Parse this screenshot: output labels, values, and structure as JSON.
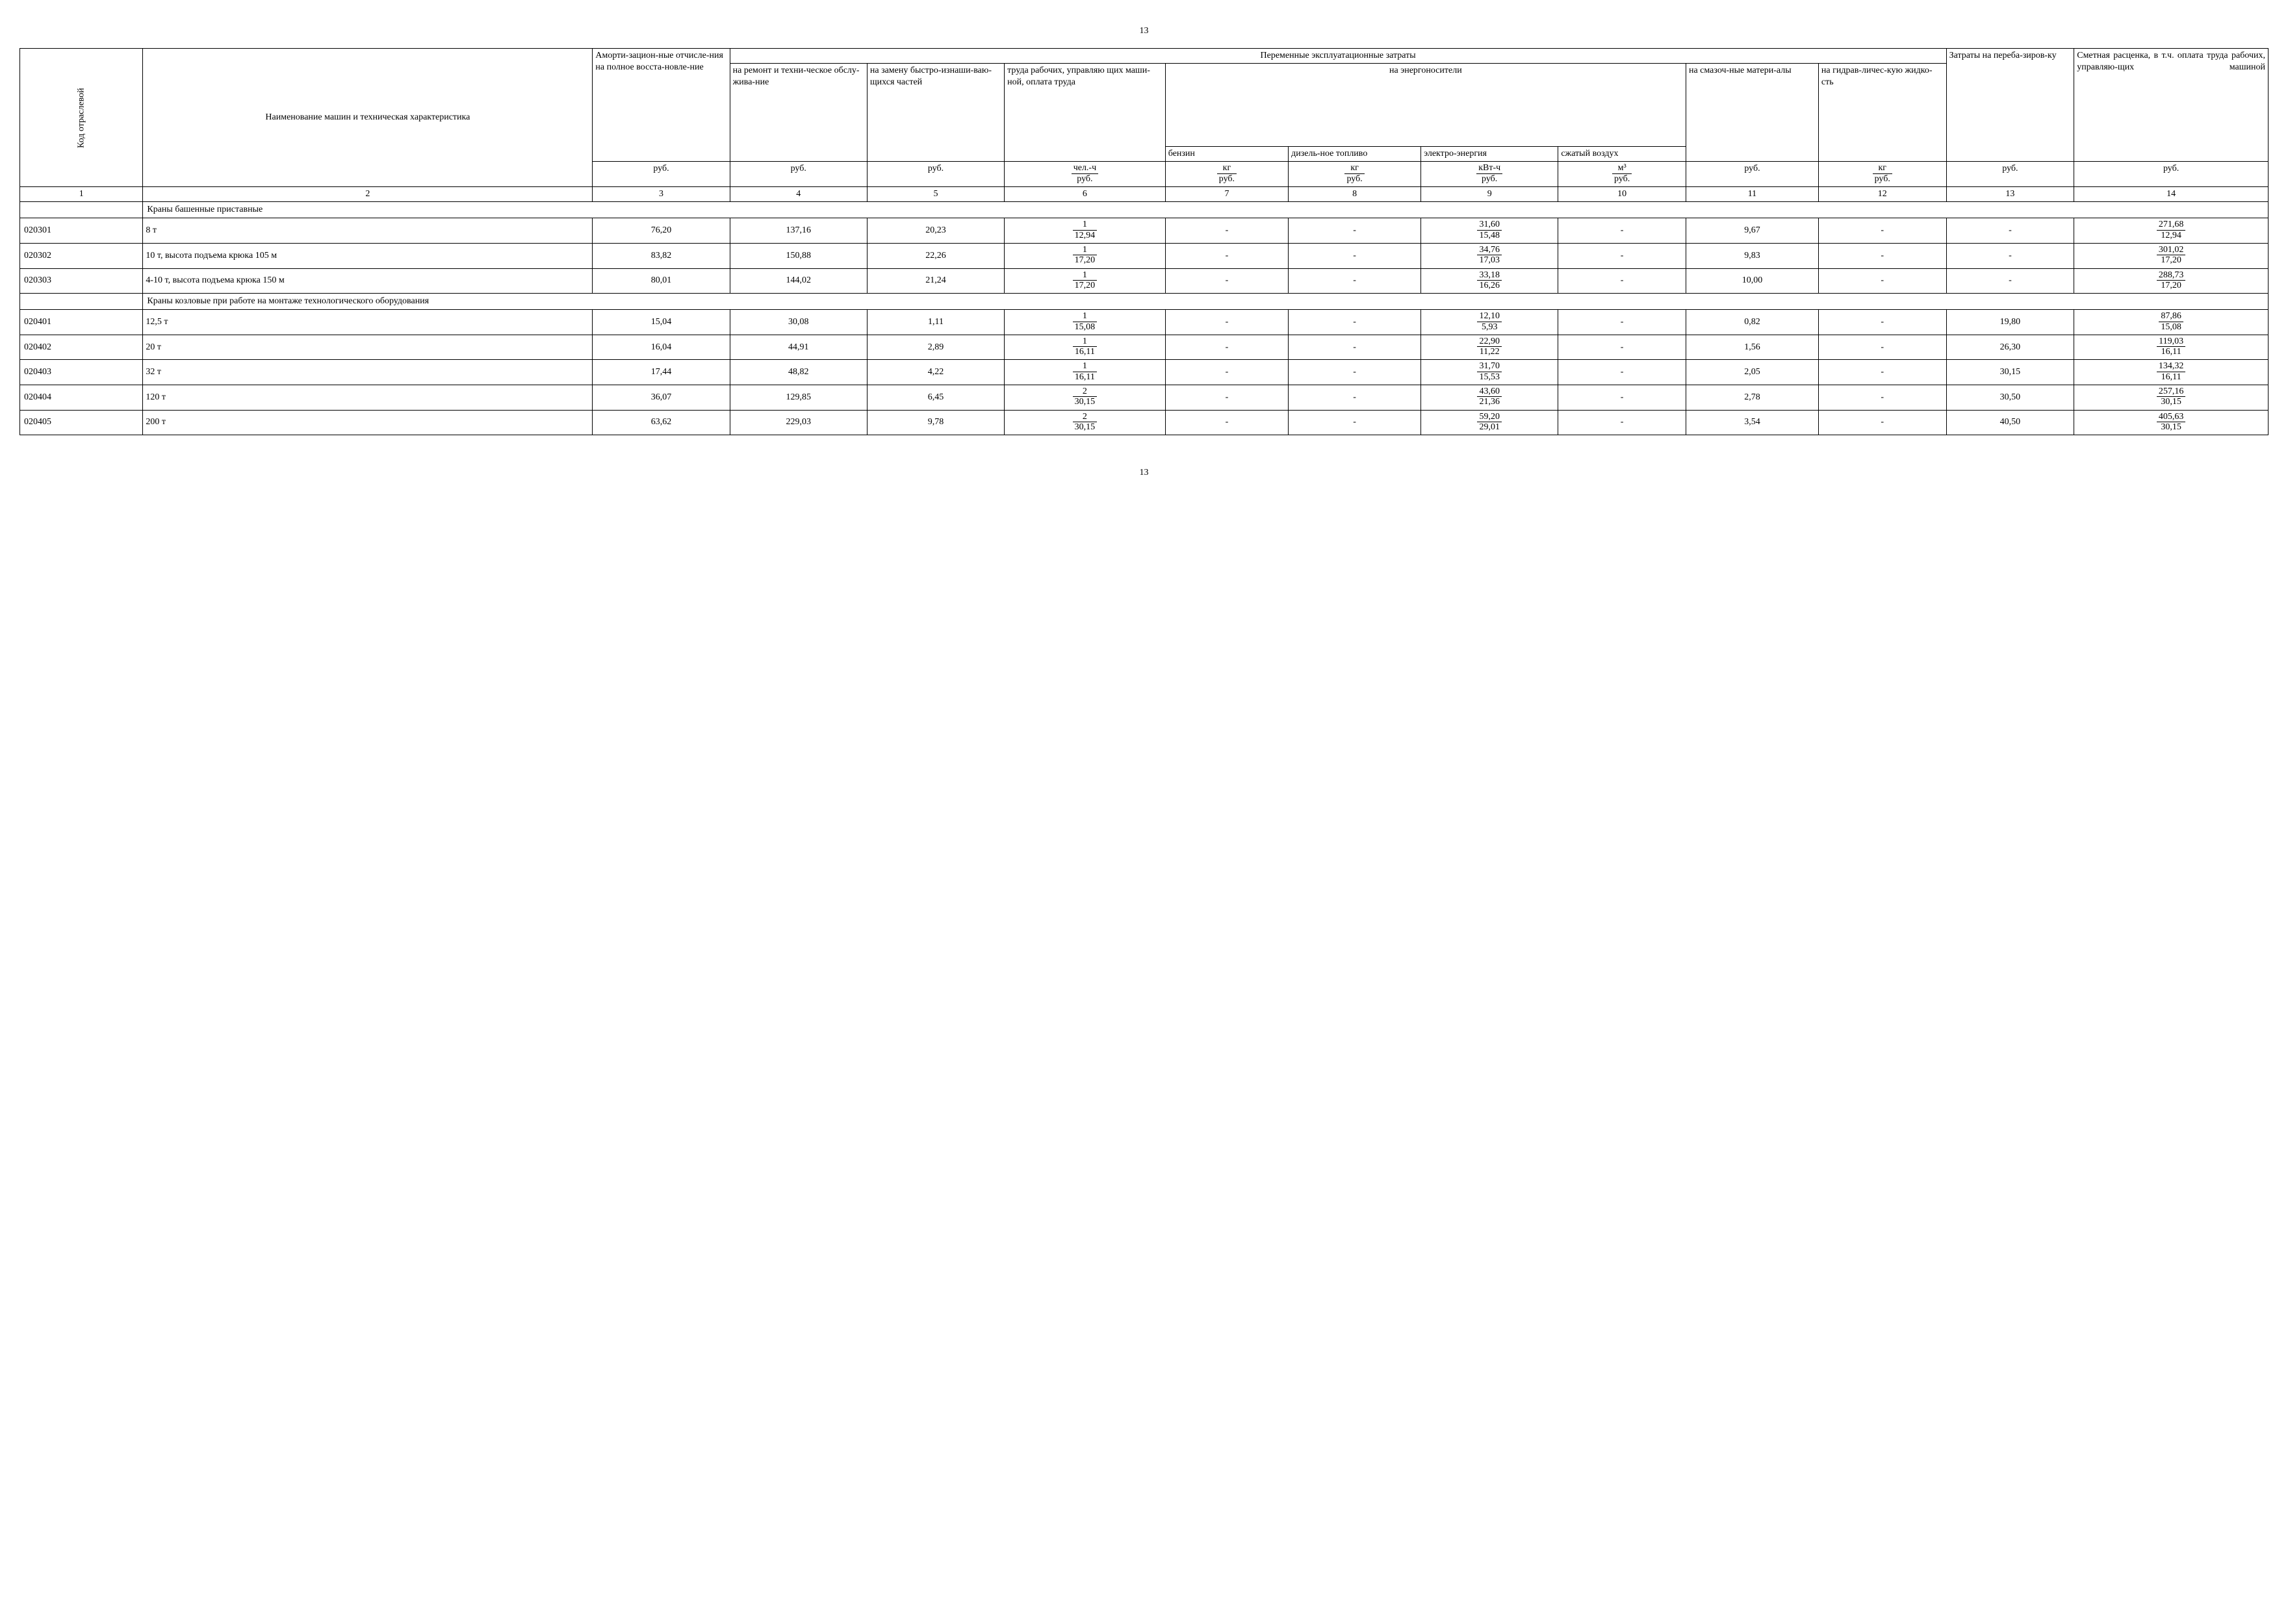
{
  "page_number": "13",
  "headers": {
    "col1": "Код отраслевой",
    "col2": "Наименование машин и техническая характеристика",
    "col3": "Аморти-зацион-ные отчисле-ния на полное восста-новле-ние",
    "group_var": "Переменные эксплуатационные затраты",
    "col4": "на ремонт и техни-ческое обслу-жива-ние",
    "col5": "на замену быстро-изнаши-ваю-щихся частей",
    "col6": "труда рабочих, управляю щих маши-ной, оплата труда",
    "group_energy": "на энергоносители",
    "col7": "бензин",
    "col8": "дизель-ное топливо",
    "col9": "электро-энергия",
    "col10": "сжатый воздух",
    "col11": "на смазоч-ные матери-алы",
    "col12": "на гидрав-личес-кую жидко-сть",
    "col13": "Затраты на переба-зиров-ку",
    "col14": "Сметная расценка, в т.ч. оплата труда рабочих, управляю-щих машиной"
  },
  "units": {
    "u3": "руб.",
    "u4": "руб.",
    "u5": "руб.",
    "u6_top": "чел.-ч",
    "u6_bot": "руб.",
    "u7_top": "кг",
    "u7_bot": "руб.",
    "u8_top": "кг",
    "u8_bot": "руб.",
    "u9_top": "кВт-ч",
    "u9_bot": "руб.",
    "u10_top": "м³",
    "u10_bot": "руб.",
    "u11": "руб.",
    "u12_top": "кг",
    "u12_bot": "руб.",
    "u13": "руб.",
    "u14": "руб."
  },
  "col_numbers": [
    "1",
    "2",
    "3",
    "4",
    "5",
    "6",
    "7",
    "8",
    "9",
    "10",
    "11",
    "12",
    "13",
    "14"
  ],
  "sections": [
    {
      "title": "Краны башенные приставные",
      "rows": [
        {
          "code": "020301",
          "name": "8 т",
          "c3": "76,20",
          "c4": "137,16",
          "c5": "20,23",
          "c6t": "1",
          "c6b": "12,94",
          "c7": "-",
          "c8": "-",
          "c9t": "31,60",
          "c9b": "15,48",
          "c10": "-",
          "c11": "9,67",
          "c12": "-",
          "c13": "-",
          "c14t": "271,68",
          "c14b": "12,94"
        },
        {
          "code": "020302",
          "name": "10 т, высота подъема крюка 105 м",
          "c3": "83,82",
          "c4": "150,88",
          "c5": "22,26",
          "c6t": "1",
          "c6b": "17,20",
          "c7": "-",
          "c8": "-",
          "c9t": "34,76",
          "c9b": "17,03",
          "c10": "-",
          "c11": "9,83",
          "c12": "-",
          "c13": "-",
          "c14t": "301,02",
          "c14b": "17,20"
        },
        {
          "code": "020303",
          "name": "4-10 т, высота подъема крюка 150 м",
          "c3": "80,01",
          "c4": "144,02",
          "c5": "21,24",
          "c6t": "1",
          "c6b": "17,20",
          "c7": "-",
          "c8": "-",
          "c9t": "33,18",
          "c9b": "16,26",
          "c10": "-",
          "c11": "10,00",
          "c12": "-",
          "c13": "-",
          "c14t": "288,73",
          "c14b": "17,20"
        }
      ]
    },
    {
      "title": "Краны козловые при работе на монтаже технологического оборудования",
      "rows": [
        {
          "code": "020401",
          "name": "12,5 т",
          "c3": "15,04",
          "c4": "30,08",
          "c5": "1,11",
          "c6t": "1",
          "c6b": "15,08",
          "c7": "-",
          "c8": "-",
          "c9t": "12,10",
          "c9b": "5,93",
          "c10": "-",
          "c11": "0,82",
          "c12": "-",
          "c13": "19,80",
          "c14t": "87,86",
          "c14b": "15,08"
        },
        {
          "code": "020402",
          "name": "20 т",
          "c3": "16,04",
          "c4": "44,91",
          "c5": "2,89",
          "c6t": "1",
          "c6b": "16,11",
          "c7": "-",
          "c8": "-",
          "c9t": "22,90",
          "c9b": "11,22",
          "c10": "-",
          "c11": "1,56",
          "c12": "-",
          "c13": "26,30",
          "c14t": "119,03",
          "c14b": "16,11"
        },
        {
          "code": "020403",
          "name": "32 т",
          "c3": "17,44",
          "c4": "48,82",
          "c5": "4,22",
          "c6t": "1",
          "c6b": "16,11",
          "c7": "-",
          "c8": "-",
          "c9t": "31,70",
          "c9b": "15,53",
          "c10": "-",
          "c11": "2,05",
          "c12": "-",
          "c13": "30,15",
          "c14t": "134,32",
          "c14b": "16,11"
        },
        {
          "code": "020404",
          "name": "120 т",
          "c3": "36,07",
          "c4": "129,85",
          "c5": "6,45",
          "c6t": "2",
          "c6b": "30,15",
          "c7": "-",
          "c8": "-",
          "c9t": "43,60",
          "c9b": "21,36",
          "c10": "-",
          "c11": "2,78",
          "c12": "-",
          "c13": "30,50",
          "c14t": "257,16",
          "c14b": "30,15"
        },
        {
          "code": "020405",
          "name": "200 т",
          "c3": "63,62",
          "c4": "229,03",
          "c5": "9,78",
          "c6t": "2",
          "c6b": "30,15",
          "c7": "-",
          "c8": "-",
          "c9t": "59,20",
          "c9b": "29,01",
          "c10": "-",
          "c11": "3,54",
          "c12": "-",
          "c13": "40,50",
          "c14t": "405,63",
          "c14b": "30,15"
        }
      ]
    }
  ],
  "col_widths_pct": [
    5.2,
    19.0,
    5.8,
    5.8,
    5.8,
    6.8,
    5.2,
    5.6,
    5.8,
    5.4,
    5.6,
    5.4,
    5.4,
    8.2
  ]
}
